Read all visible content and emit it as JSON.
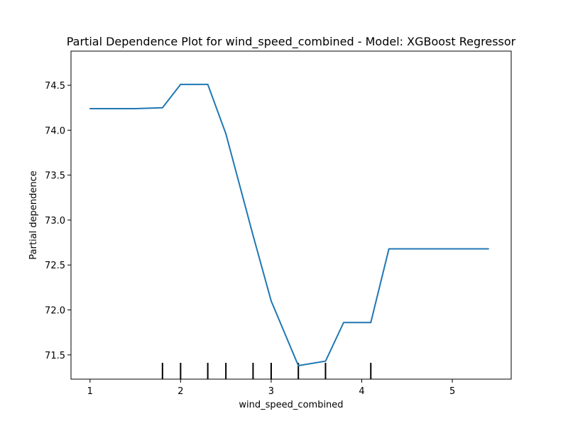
{
  "chart_data": {
    "type": "line",
    "title": "Partial Dependence Plot for wind_speed_combined - Model: XGBoost Regressor",
    "xlabel": "wind_speed_combined",
    "ylabel": "Partial dependence",
    "xlim": [
      0.79,
      5.65
    ],
    "ylim": [
      71.23,
      74.88
    ],
    "xticks": [
      1,
      2,
      3,
      4,
      5
    ],
    "yticks": [
      71.5,
      72.0,
      72.5,
      73.0,
      73.5,
      74.0,
      74.5
    ],
    "xtick_labels": [
      "1",
      "2",
      "3",
      "4",
      "5"
    ],
    "ytick_labels": [
      "71.5",
      "72.0",
      "72.5",
      "73.0",
      "73.5",
      "74.0",
      "74.5"
    ],
    "series": [
      {
        "color": "#1f77b4",
        "x": [
          1.0,
          1.5,
          1.8,
          2.0,
          2.3,
          2.5,
          2.8,
          3.0,
          3.3,
          3.6,
          3.8,
          4.1,
          4.3,
          4.6,
          5.0,
          5.4
        ],
        "y": [
          74.24,
          74.24,
          74.25,
          74.51,
          74.51,
          73.96,
          72.83,
          72.1,
          71.38,
          71.43,
          71.86,
          71.86,
          72.68,
          72.68,
          72.68,
          72.68
        ]
      }
    ],
    "rug": {
      "color": "#000000",
      "x": [
        1.8,
        2.0,
        2.3,
        2.5,
        2.8,
        3.0,
        3.3,
        3.6,
        4.1
      ]
    },
    "grid": false,
    "legend": "none"
  }
}
